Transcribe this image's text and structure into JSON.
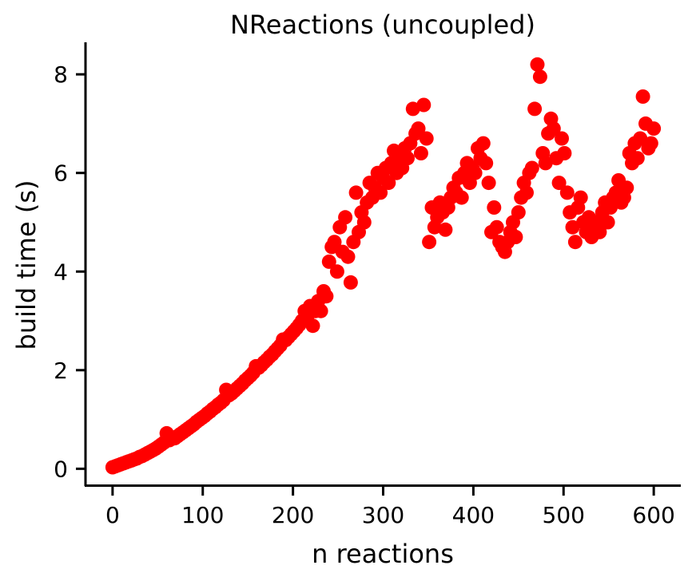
{
  "chart_data": {
    "type": "scatter",
    "title": "NReactions (uncoupled)",
    "xlabel": "n reactions",
    "ylabel": "build time (s)",
    "xlim": [
      -30,
      630
    ],
    "ylim": [
      -0.35,
      8.65
    ],
    "xticks": [
      0,
      100,
      200,
      300,
      400,
      500,
      600
    ],
    "yticks": [
      0,
      2,
      4,
      6,
      8
    ],
    "grid": false,
    "legend": "none",
    "marker_color": "#ff0000",
    "series": [
      {
        "points": [
          [
            0,
            0.03
          ],
          [
            3,
            0.05
          ],
          [
            6,
            0.07
          ],
          [
            9,
            0.09
          ],
          [
            12,
            0.11
          ],
          [
            15,
            0.13
          ],
          [
            18,
            0.15
          ],
          [
            21,
            0.17
          ],
          [
            24,
            0.19
          ],
          [
            27,
            0.21
          ],
          [
            30,
            0.24
          ],
          [
            33,
            0.26
          ],
          [
            36,
            0.29
          ],
          [
            39,
            0.32
          ],
          [
            42,
            0.35
          ],
          [
            45,
            0.38
          ],
          [
            48,
            0.41
          ],
          [
            51,
            0.45
          ],
          [
            54,
            0.49
          ],
          [
            57,
            0.53
          ],
          [
            60,
            0.72
          ],
          [
            63,
            0.58
          ],
          [
            66,
            0.61
          ],
          [
            69,
            0.62
          ],
          [
            72,
            0.66
          ],
          [
            75,
            0.7
          ],
          [
            78,
            0.74
          ],
          [
            81,
            0.78
          ],
          [
            84,
            0.82
          ],
          [
            87,
            0.86
          ],
          [
            90,
            0.9
          ],
          [
            93,
            0.95
          ],
          [
            96,
            0.99
          ],
          [
            99,
            1.03
          ],
          [
            102,
            1.07
          ],
          [
            105,
            1.12
          ],
          [
            108,
            1.16
          ],
          [
            111,
            1.21
          ],
          [
            114,
            1.25
          ],
          [
            117,
            1.3
          ],
          [
            120,
            1.34
          ],
          [
            123,
            1.39
          ],
          [
            126,
            1.6
          ],
          [
            129,
            1.49
          ],
          [
            132,
            1.53
          ],
          [
            135,
            1.58
          ],
          [
            138,
            1.63
          ],
          [
            141,
            1.68
          ],
          [
            144,
            1.73
          ],
          [
            147,
            1.79
          ],
          [
            150,
            1.84
          ],
          [
            153,
            1.89
          ],
          [
            156,
            1.95
          ],
          [
            159,
            2.08
          ],
          [
            162,
            2.05
          ],
          [
            165,
            2.1
          ],
          [
            168,
            2.16
          ],
          [
            171,
            2.21
          ],
          [
            174,
            2.27
          ],
          [
            177,
            2.32
          ],
          [
            180,
            2.38
          ],
          [
            183,
            2.44
          ],
          [
            186,
            2.5
          ],
          [
            189,
            2.62
          ],
          [
            192,
            2.61
          ],
          [
            195,
            2.67
          ],
          [
            198,
            2.73
          ],
          [
            201,
            2.79
          ],
          [
            204,
            2.85
          ],
          [
            207,
            2.92
          ],
          [
            210,
            3.0
          ],
          [
            213,
            3.2
          ],
          [
            216,
            3.1
          ],
          [
            219,
            3.3
          ],
          [
            222,
            2.9
          ],
          [
            225,
            3.2
          ],
          [
            228,
            3.4
          ],
          [
            231,
            3.2
          ],
          [
            234,
            3.6
          ],
          [
            237,
            3.5
          ],
          [
            240,
            4.2
          ],
          [
            243,
            4.5
          ],
          [
            246,
            4.6
          ],
          [
            249,
            4.0
          ],
          [
            252,
            4.9
          ],
          [
            255,
            4.4
          ],
          [
            258,
            5.1
          ],
          [
            261,
            4.3
          ],
          [
            264,
            3.78
          ],
          [
            267,
            4.6
          ],
          [
            270,
            5.6
          ],
          [
            273,
            4.8
          ],
          [
            276,
            5.2
          ],
          [
            279,
            5.0
          ],
          [
            282,
            5.4
          ],
          [
            285,
            5.8
          ],
          [
            288,
            5.5
          ],
          [
            291,
            5.7
          ],
          [
            294,
            6.0
          ],
          [
            297,
            5.6
          ],
          [
            300,
            5.9
          ],
          [
            303,
            6.1
          ],
          [
            306,
            5.8
          ],
          [
            309,
            6.2
          ],
          [
            312,
            6.45
          ],
          [
            315,
            6.0
          ],
          [
            318,
            6.3
          ],
          [
            321,
            6.1
          ],
          [
            324,
            6.5
          ],
          [
            327,
            6.3
          ],
          [
            330,
            6.6
          ],
          [
            333,
            7.3
          ],
          [
            336,
            6.8
          ],
          [
            339,
            6.9
          ],
          [
            342,
            6.4
          ],
          [
            345,
            7.38
          ],
          [
            348,
            6.7
          ],
          [
            351,
            4.6
          ],
          [
            354,
            5.3
          ],
          [
            357,
            4.9
          ],
          [
            360,
            5.1
          ],
          [
            363,
            5.4
          ],
          [
            366,
            5.2
          ],
          [
            369,
            4.85
          ],
          [
            372,
            5.3
          ],
          [
            375,
            5.5
          ],
          [
            378,
            5.7
          ],
          [
            381,
            5.6
          ],
          [
            384,
            5.9
          ],
          [
            387,
            5.5
          ],
          [
            390,
            6.0
          ],
          [
            393,
            6.2
          ],
          [
            396,
            5.8
          ],
          [
            399,
            6.1
          ],
          [
            402,
            6.0
          ],
          [
            405,
            6.5
          ],
          [
            408,
            6.3
          ],
          [
            411,
            6.6
          ],
          [
            414,
            6.2
          ],
          [
            417,
            5.8
          ],
          [
            420,
            4.8
          ],
          [
            423,
            5.3
          ],
          [
            426,
            4.9
          ],
          [
            429,
            4.6
          ],
          [
            432,
            4.5
          ],
          [
            435,
            4.4
          ],
          [
            438,
            4.6
          ],
          [
            441,
            4.8
          ],
          [
            444,
            5.0
          ],
          [
            447,
            4.7
          ],
          [
            450,
            5.2
          ],
          [
            453,
            5.5
          ],
          [
            456,
            5.8
          ],
          [
            459,
            5.6
          ],
          [
            462,
            6.0
          ],
          [
            465,
            6.1
          ],
          [
            468,
            7.3
          ],
          [
            471,
            8.2
          ],
          [
            474,
            7.95
          ],
          [
            477,
            6.4
          ],
          [
            480,
            6.2
          ],
          [
            483,
            6.8
          ],
          [
            486,
            7.1
          ],
          [
            489,
            6.9
          ],
          [
            492,
            6.3
          ],
          [
            495,
            5.8
          ],
          [
            498,
            6.7
          ],
          [
            501,
            6.4
          ],
          [
            504,
            5.6
          ],
          [
            507,
            5.2
          ],
          [
            510,
            4.9
          ],
          [
            513,
            4.6
          ],
          [
            516,
            5.3
          ],
          [
            519,
            5.5
          ],
          [
            522,
            5.0
          ],
          [
            525,
            4.8
          ],
          [
            528,
            5.1
          ],
          [
            531,
            4.7
          ],
          [
            534,
            4.9
          ],
          [
            537,
            5.0
          ],
          [
            540,
            4.8
          ],
          [
            543,
            5.2
          ],
          [
            546,
            5.4
          ],
          [
            549,
            5.0
          ],
          [
            552,
            5.3
          ],
          [
            555,
            5.5
          ],
          [
            558,
            5.6
          ],
          [
            561,
            5.85
          ],
          [
            564,
            5.4
          ],
          [
            567,
            5.5
          ],
          [
            570,
            5.7
          ],
          [
            573,
            6.4
          ],
          [
            576,
            6.2
          ],
          [
            579,
            6.6
          ],
          [
            582,
            6.3
          ],
          [
            585,
            6.7
          ],
          [
            588,
            7.55
          ],
          [
            591,
            7.0
          ],
          [
            594,
            6.5
          ],
          [
            597,
            6.6
          ],
          [
            600,
            6.9
          ]
        ]
      }
    ]
  }
}
